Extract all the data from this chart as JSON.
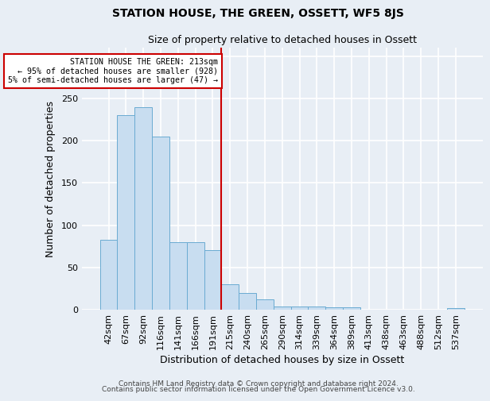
{
  "title": "STATION HOUSE, THE GREEN, OSSETT, WF5 8JS",
  "subtitle": "Size of property relative to detached houses in Ossett",
  "xlabel": "Distribution of detached houses by size in Ossett",
  "ylabel": "Number of detached properties",
  "categories": [
    "42sqm",
    "67sqm",
    "92sqm",
    "116sqm",
    "141sqm",
    "166sqm",
    "191sqm",
    "215sqm",
    "240sqm",
    "265sqm",
    "290sqm",
    "314sqm",
    "339sqm",
    "364sqm",
    "389sqm",
    "413sqm",
    "438sqm",
    "463sqm",
    "488sqm",
    "512sqm",
    "537sqm"
  ],
  "values": [
    83,
    230,
    240,
    205,
    80,
    80,
    70,
    30,
    20,
    12,
    4,
    4,
    4,
    3,
    3,
    0,
    0,
    0,
    0,
    0,
    2
  ],
  "bar_color": "#c8ddf0",
  "bar_edge_color": "#6aabd2",
  "marker_line_color": "#cc0000",
  "marker_box_facecolor": "#ffffff",
  "marker_box_edgecolor": "#cc0000",
  "annotation_line1": "STATION HOUSE THE GREEN: 213sqm",
  "annotation_line2": "← 95% of detached houses are smaller (928)",
  "annotation_line3": "5% of semi-detached houses are larger (47) →",
  "ylim": [
    0,
    310
  ],
  "yticks": [
    0,
    50,
    100,
    150,
    200,
    250,
    300
  ],
  "footer1": "Contains HM Land Registry data © Crown copyright and database right 2024.",
  "footer2": "Contains public sector information licensed under the Open Government Licence v3.0.",
  "bg_color": "#e8eef5",
  "plot_bg_color": "#e8eef5",
  "grid_color": "#ffffff"
}
